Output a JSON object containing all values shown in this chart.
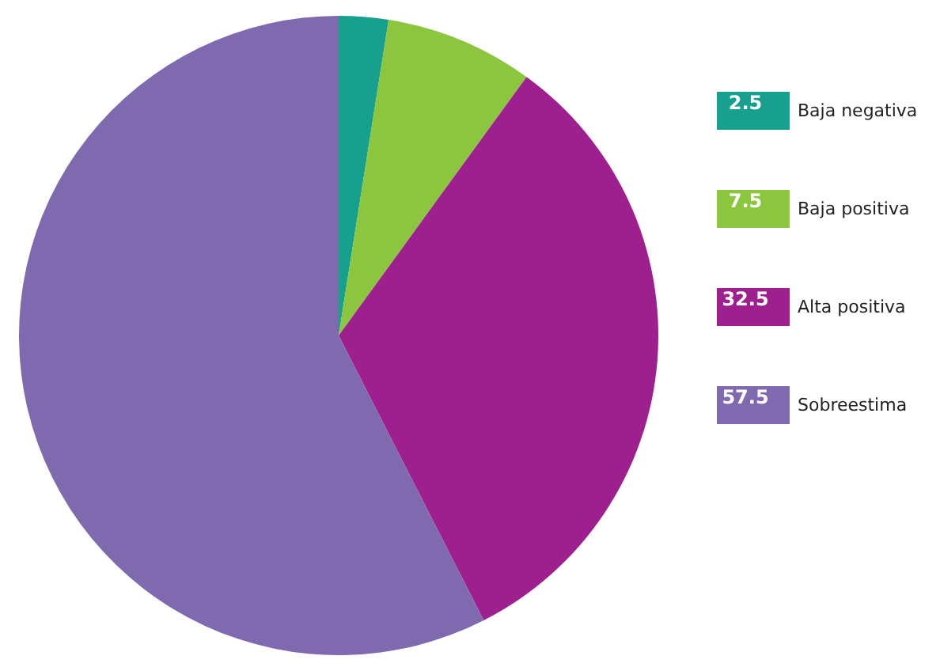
{
  "chart_data": {
    "type": "pie",
    "categories": [
      "Baja negativa",
      "Baja positiva",
      "Alta positiva",
      "Sobreestima"
    ],
    "values": [
      2.5,
      7.5,
      32.5,
      57.5
    ],
    "colors": [
      "#18a08f",
      "#8cc63f",
      "#9e1f8e",
      "#7f6ab0"
    ],
    "data_labels": true,
    "legend": "right"
  }
}
